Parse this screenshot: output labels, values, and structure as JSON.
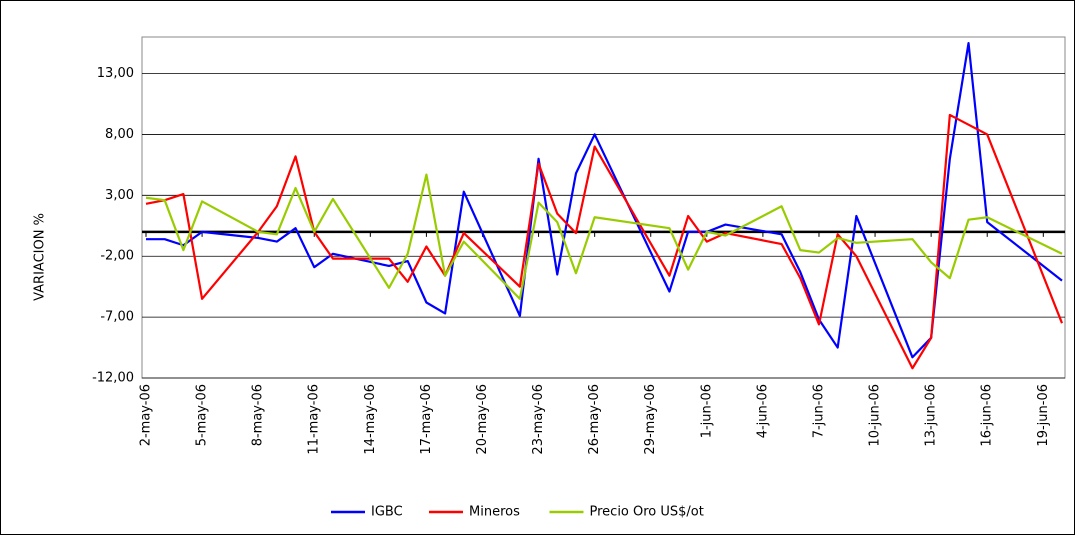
{
  "chart_data": {
    "type": "line",
    "y_label": "VARIACION %",
    "x": [
      "2006-05-02",
      "2006-05-03",
      "2006-05-04",
      "2006-05-05",
      "2006-05-08",
      "2006-05-09",
      "2006-05-10",
      "2006-05-11",
      "2006-05-12",
      "2006-05-15",
      "2006-05-16",
      "2006-05-17",
      "2006-05-18",
      "2006-05-19",
      "2006-05-22",
      "2006-05-23",
      "2006-05-24",
      "2006-05-25",
      "2006-05-26",
      "2006-05-30",
      "2006-05-31",
      "2006-06-01",
      "2006-06-02",
      "2006-06-05",
      "2006-06-06",
      "2006-06-07",
      "2006-06-08",
      "2006-06-09",
      "2006-06-12",
      "2006-06-13",
      "2006-06-14",
      "2006-06-15",
      "2006-06-16",
      "2006-06-20"
    ],
    "series": [
      {
        "name": "IGBC",
        "color": "#0000ff",
        "values": [
          -0.6,
          -0.6,
          -1.1,
          0,
          -0.5,
          -0.8,
          0.3,
          -2.9,
          -1.8,
          -2.8,
          -2.4,
          -5.8,
          -6.7,
          3.3,
          -6.9,
          6,
          -3.5,
          4.8,
          8,
          -4.9,
          0,
          0,
          0.6,
          -0.2,
          -3.3,
          -7.2,
          -9.5,
          1.3,
          -10.3,
          -8.7,
          6,
          15.5,
          0.8,
          -4
        ]
      },
      {
        "name": "Mineros",
        "color": "#ff0000",
        "values": [
          2.3,
          2.6,
          3.1,
          -5.5,
          0,
          2.1,
          6.2,
          0,
          -2.2,
          -2.2,
          -4.1,
          -1.2,
          -3.6,
          -0.1,
          -4.5,
          5.6,
          1.5,
          -0.1,
          7,
          -3.6,
          1.3,
          -0.8,
          -0.1,
          -1,
          -3.8,
          -7.6,
          -0.2,
          -2,
          -11.2,
          -8.7,
          9.6,
          8.8,
          8,
          -7.5
        ]
      },
      {
        "name": "Precio Oro US$/ot",
        "color": "#99cc00",
        "values": [
          2.8,
          2.6,
          -1.5,
          2.5,
          0,
          -0.2,
          3.6,
          0,
          2.7,
          -4.6,
          -1.8,
          4.7,
          -3.6,
          -0.8,
          -5.5,
          2.4,
          0.8,
          -3.4,
          1.2,
          0.3,
          -3.1,
          0,
          -0.3,
          2.1,
          -1.5,
          -1.7,
          -0.5,
          -0.9,
          -0.6,
          -2.5,
          -3.8,
          1,
          1.2,
          -1.8
        ]
      }
    ],
    "xlim": [
      "2006-05-02",
      "2006-06-20"
    ],
    "xticks": [
      {
        "value": "2006-05-02",
        "label": "2-may-06"
      },
      {
        "value": "2006-05-05",
        "label": "5-may-06"
      },
      {
        "value": "2006-05-08",
        "label": "8-may-06"
      },
      {
        "value": "2006-05-11",
        "label": "11-may-06"
      },
      {
        "value": "2006-05-14",
        "label": "14-may-06"
      },
      {
        "value": "2006-05-17",
        "label": "17-may-06"
      },
      {
        "value": "2006-05-20",
        "label": "20-may-06"
      },
      {
        "value": "2006-05-23",
        "label": "23-may-06"
      },
      {
        "value": "2006-05-26",
        "label": "26-may-06"
      },
      {
        "value": "2006-05-29",
        "label": "29-may-06"
      },
      {
        "value": "2006-06-01",
        "label": "1-jun-06"
      },
      {
        "value": "2006-06-04",
        "label": "4-jun-06"
      },
      {
        "value": "2006-06-07",
        "label": "7-jun-06"
      },
      {
        "value": "2006-06-10",
        "label": "10-jun-06"
      },
      {
        "value": "2006-06-13",
        "label": "13-jun-06"
      },
      {
        "value": "2006-06-16",
        "label": "16-jun-06"
      },
      {
        "value": "2006-06-19",
        "label": "19-jun-06"
      }
    ],
    "ylim": [
      -12,
      16
    ],
    "yticks": [
      {
        "value": -12,
        "label": "-12,00"
      },
      {
        "value": -7,
        "label": "-7,00"
      },
      {
        "value": -2,
        "label": "-2,00"
      },
      {
        "value": 3,
        "label": "3,00"
      },
      {
        "value": 8,
        "label": "8,00"
      },
      {
        "value": 13,
        "label": "13,00"
      }
    ],
    "grid": true,
    "legend": "bottom"
  }
}
